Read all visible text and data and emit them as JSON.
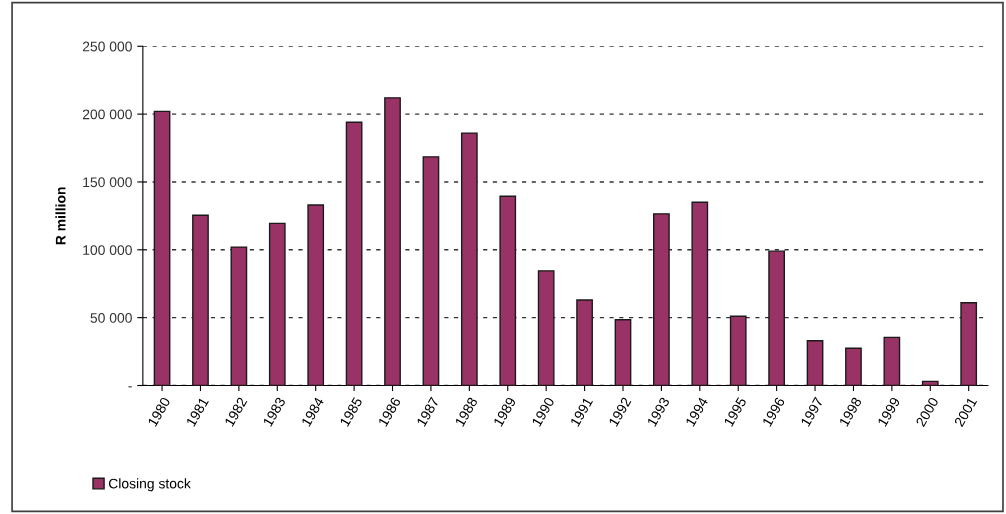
{
  "chart_data": {
    "type": "bar",
    "ylabel": "R million",
    "categories": [
      "1980",
      "1981",
      "1982",
      "1983",
      "1984",
      "1985",
      "1986",
      "1987",
      "1988",
      "1989",
      "1990",
      "1991",
      "1992",
      "1993",
      "1994",
      "1995",
      "1996",
      "1997",
      "1998",
      "1999",
      "2000",
      "2001"
    ],
    "series": [
      {
        "name": "Closing stock",
        "color": "#993366",
        "values": [
          202000,
          125500,
          102000,
          119500,
          133000,
          194000,
          212000,
          168500,
          186000,
          139500,
          84500,
          63000,
          48500,
          126500,
          135000,
          51000,
          99000,
          33000,
          27500,
          35500,
          3000,
          61000
        ]
      }
    ],
    "ylim": [
      0,
      250000
    ],
    "yticks": [
      {
        "value": 0,
        "label": "-"
      },
      {
        "value": 50000,
        "label": "50 000"
      },
      {
        "value": 100000,
        "label": "100 000"
      },
      {
        "value": 150000,
        "label": "150 000"
      },
      {
        "value": 200000,
        "label": "200 000"
      },
      {
        "value": 250000,
        "label": "250 000"
      }
    ],
    "grid": "y",
    "legend": "bottom left"
  }
}
